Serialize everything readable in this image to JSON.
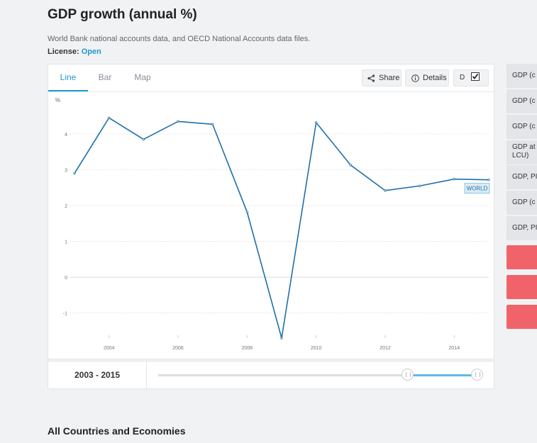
{
  "header": {
    "title": "GDP growth (annual %)",
    "source": "World Bank national accounts data, and OECD National Accounts data files.",
    "license_label": "License:",
    "license_value": "Open"
  },
  "tabs": [
    {
      "label": "Line",
      "active": true
    },
    {
      "label": "Bar",
      "active": false
    },
    {
      "label": "Map",
      "active": false
    }
  ],
  "toolbar": {
    "share_label": "Share",
    "details_label": "Details",
    "toggle_label": "D"
  },
  "chart_data": {
    "type": "line",
    "title": "",
    "ylabel": "%",
    "xlabel": "",
    "x": [
      2003,
      2004,
      2005,
      2006,
      2007,
      2008,
      2009,
      2010,
      2011,
      2012,
      2013,
      2014,
      2015
    ],
    "series": [
      {
        "name": "WORLD",
        "values": [
          2.9,
          4.45,
          3.85,
          4.35,
          4.27,
          1.82,
          -1.7,
          4.32,
          3.13,
          2.42,
          2.55,
          2.74,
          2.72
        ]
      }
    ],
    "xticks": [
      "2004",
      "2006",
      "2008",
      "2010",
      "2012",
      "2014"
    ],
    "yticks": [
      "-1",
      "0",
      "1",
      "2",
      "3",
      "4"
    ],
    "xlim": [
      2003,
      2015
    ],
    "ylim": [
      -1.7,
      4.95
    ],
    "grid": true,
    "annotation": "WORLD",
    "line_color": "#1f6fa8"
  },
  "range": {
    "label": "2003 - 2015"
  },
  "sidebar": {
    "items": [
      "GDP (c",
      "GDP (c",
      "GDP (c",
      "GDP at LCU)",
      "GDP, PI",
      "GDP (c",
      "GDP, PI"
    ]
  },
  "section_title": "All Countries and Economies"
}
